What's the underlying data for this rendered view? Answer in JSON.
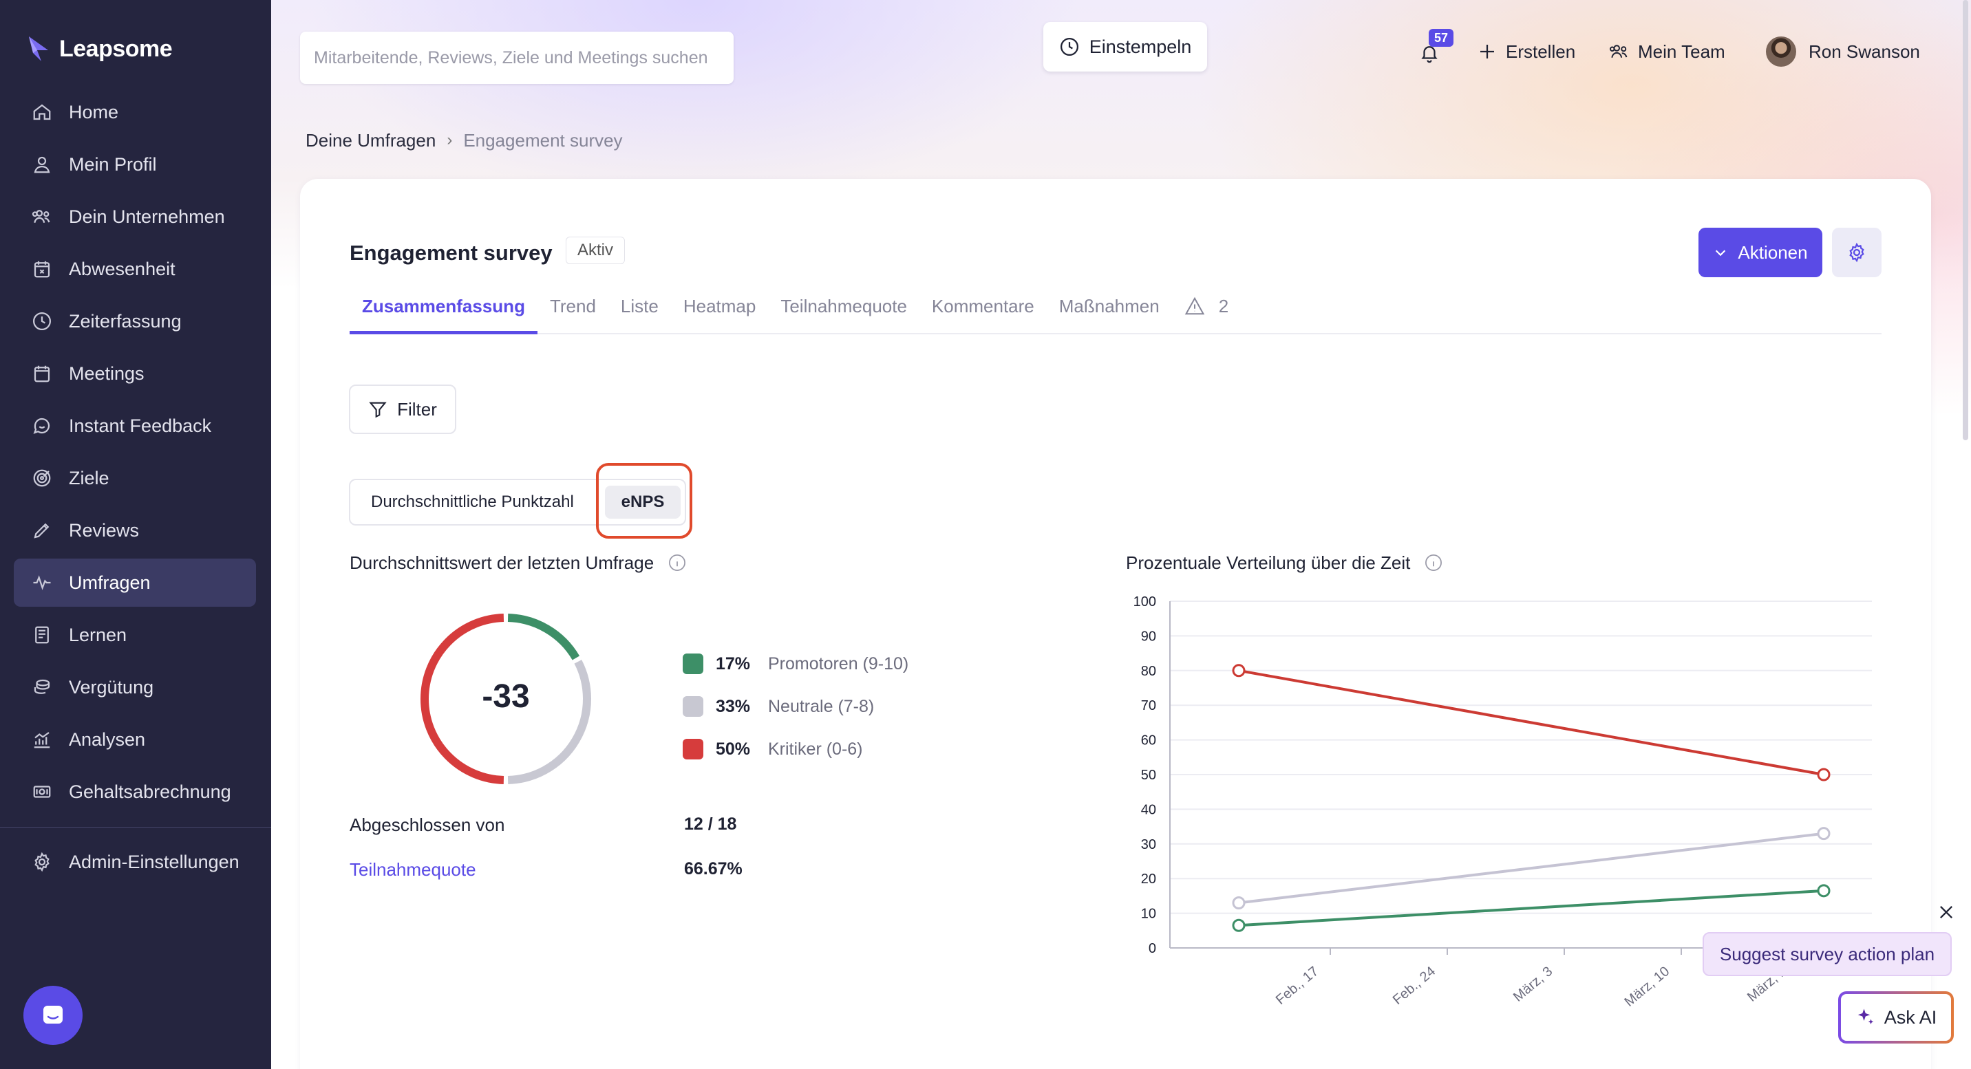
{
  "app": {
    "brand": "Leapsome"
  },
  "sidebar": {
    "items": [
      {
        "label": "Home",
        "icon": "home-icon"
      },
      {
        "label": "Mein Profil",
        "icon": "user-icon"
      },
      {
        "label": "Dein Unternehmen",
        "icon": "users-icon"
      },
      {
        "label": "Abwesenheit",
        "icon": "calendar-x-icon"
      },
      {
        "label": "Zeiterfassung",
        "icon": "clock-icon"
      },
      {
        "label": "Meetings",
        "icon": "calendar-icon"
      },
      {
        "label": "Instant Feedback",
        "icon": "chat-icon"
      },
      {
        "label": "Ziele",
        "icon": "target-icon"
      },
      {
        "label": "Reviews",
        "icon": "pen-icon"
      },
      {
        "label": "Umfragen",
        "icon": "pulse-icon",
        "active": true
      },
      {
        "label": "Lernen",
        "icon": "book-icon"
      },
      {
        "label": "Vergütung",
        "icon": "coins-icon"
      },
      {
        "label": "Analysen",
        "icon": "analytics-icon"
      },
      {
        "label": "Gehaltsabrechnung",
        "icon": "money-icon"
      }
    ],
    "admin": {
      "label": "Admin-Einstellungen",
      "icon": "gear-icon"
    }
  },
  "topbar": {
    "search_placeholder": "Mitarbeitende, Reviews, Ziele und Meetings suchen",
    "clock_in": "Einstempeln",
    "notifications_count": "57",
    "create": "Erstellen",
    "my_team": "Mein Team",
    "user_name": "Ron Swanson"
  },
  "breadcrumb": {
    "parent": "Deine Umfragen",
    "separator": "›",
    "current": "Engagement survey"
  },
  "survey": {
    "title": "Engagement survey",
    "status": "Aktiv",
    "actions_label": "Aktionen",
    "tabs": [
      "Zusammenfassung",
      "Trend",
      "Liste",
      "Heatmap",
      "Teilnahmequote",
      "Kommentare",
      "Maßnahmen"
    ],
    "warnings_count": "2",
    "filter_label": "Filter",
    "toggle": {
      "option_a": "Durchschnittliche Punktzahl",
      "option_b": "eNPS"
    }
  },
  "summary": {
    "title": "Durchschnittswert der letzten Umfrage",
    "enps_value": "-33",
    "legend": [
      {
        "pct": "17%",
        "label": "Promotoren (9-10)",
        "color": "#3d8f67"
      },
      {
        "pct": "33%",
        "label": "Neutrale (7-8)",
        "color": "#c8c8d2"
      },
      {
        "pct": "50%",
        "label": "Kritiker (0-6)",
        "color": "#d63c3c"
      }
    ],
    "completed_label": "Abgeschlossen von",
    "completed_value": "12 / 18",
    "participation_label": "Teilnahmequote",
    "participation_value": "66.67%"
  },
  "distribution": {
    "title": "Prozentuale Verteilung über die Zeit"
  },
  "chart_data": {
    "type": "line",
    "x": [
      "Feb., 17",
      "Feb., 24",
      "März, 3",
      "März, 10",
      "März, 1"
    ],
    "yticks": [
      "0",
      "10",
      "20",
      "30",
      "40",
      "50",
      "60",
      "70",
      "80",
      "90",
      "100"
    ],
    "ylim": [
      0,
      100
    ],
    "grid": true,
    "series": [
      {
        "color": "#cc3a33",
        "points": [
          [
            0,
            80
          ],
          [
            4,
            50
          ]
        ]
      },
      {
        "color": "#c5c3d3",
        "points": [
          [
            0,
            13
          ],
          [
            4,
            33
          ]
        ]
      },
      {
        "color": "#3d8f67",
        "points": [
          [
            0,
            6.5
          ],
          [
            4,
            16.5
          ]
        ]
      }
    ]
  },
  "assistant": {
    "suggest": "Suggest survey action plan",
    "ask_ai": "Ask AI"
  }
}
